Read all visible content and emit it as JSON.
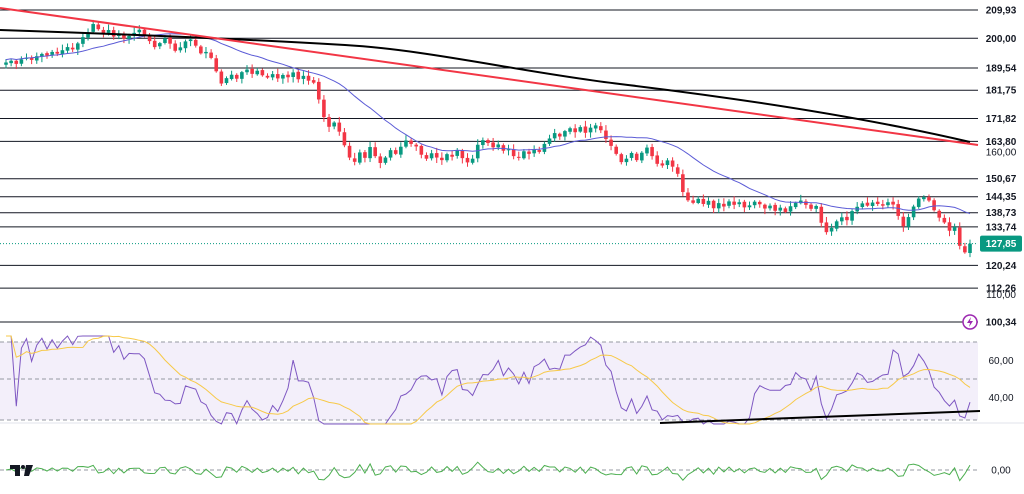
{
  "chart_data": {
    "type": "candlestick",
    "price_axis": {
      "labels": [
        "209,93",
        "200,00",
        "189,54",
        "181,75",
        "171,82",
        "163,80",
        "160,00",
        "150,67",
        "144,35",
        "138,73",
        "133,74",
        "127,85",
        "120,24",
        "112,26",
        "110,00",
        "100,34"
      ],
      "ylim": [
        96,
        213
      ]
    },
    "horizontal_levels": [
      209.93,
      200.0,
      189.54,
      181.75,
      171.82,
      163.8,
      150.67,
      144.35,
      138.73,
      133.74,
      120.24,
      112.26,
      100.34
    ],
    "last_price": {
      "value": 127.85,
      "label": "127,85",
      "color": "#089981"
    },
    "colors": {
      "up": "#089981",
      "down": "#f23645",
      "ma_short": "#5b5bd6",
      "ma_long": "#000000",
      "trendline": "#f23645",
      "rsi": "#7e57c2",
      "rsi_ma": "#f7c948",
      "momentum": "#4caf50"
    },
    "candles_close": [
      191.5,
      192.1,
      191.0,
      192.6,
      193.2,
      192.4,
      193.7,
      194.5,
      193.9,
      195.2,
      194.6,
      195.8,
      196.9,
      196.1,
      198.2,
      200.4,
      202.1,
      205.0,
      203.2,
      201.8,
      202.9,
      200.6,
      201.7,
      199.9,
      200.8,
      201.9,
      203.0,
      201.2,
      199.0,
      196.9,
      198.3,
      200.0,
      198.1,
      195.6,
      196.8,
      198.9,
      199.6,
      197.4,
      194.7,
      195.2,
      193.1,
      188.4,
      184.1,
      186.0,
      187.2,
      185.8,
      188.1,
      189.0,
      187.5,
      188.6,
      187.0,
      186.2,
      187.4,
      185.9,
      187.1,
      186.3,
      188.0,
      185.6,
      186.8,
      185.1,
      184.4,
      178.5,
      172.3,
      168.9,
      170.4,
      167.2,
      162.4,
      158.1,
      156.6,
      159.9,
      158.0,
      161.8,
      158.6,
      156.2,
      158.1,
      160.7,
      159.4,
      161.9,
      164.1,
      162.9,
      162.0,
      159.1,
      157.7,
      159.6,
      158.1,
      157.2,
      159.3,
      158.4,
      160.6,
      157.9,
      156.4,
      157.7,
      162.6,
      164.2,
      163.2,
      161.7,
      162.7,
      160.5,
      161.0,
      158.6,
      158.0,
      160.3,
      159.4,
      161.0,
      160.1,
      162.9,
      164.8,
      166.7,
      165.5,
      167.4,
      168.4,
      167.0,
      168.8,
      166.8,
      168.6,
      169.4,
      167.7,
      164.6,
      162.2,
      159.4,
      156.5,
      157.7,
      159.7,
      157.2,
      159.8,
      161.6,
      158.6,
      155.9,
      155.3,
      157.1,
      154.9,
      152.4,
      146.0,
      143.1,
      142.2,
      143.6,
      141.8,
      142.9,
      140.3,
      142.1,
      140.9,
      142.7,
      141.5,
      142.4,
      140.6,
      141.3,
      142.6,
      141.7,
      140.2,
      141.2,
      139.4,
      140.5,
      139.0,
      141.0,
      142.2,
      143.0,
      141.5,
      140.1,
      141.1,
      135.2,
      131.9,
      133.4,
      135.7,
      137.1,
      136.1,
      139.3,
      140.8,
      142.0,
      141.2,
      142.3,
      141.8,
      141.2,
      142.4,
      141.6,
      137.6,
      134.0,
      137.2,
      140.9,
      143.7,
      144.2,
      143.0,
      139.6,
      137.0,
      135.3,
      132.4,
      133.7,
      127.1,
      124.8,
      127.85
    ],
    "rsi_axis": {
      "labels": [
        "60,00",
        "40,00"
      ]
    },
    "momentum_axis": {
      "labels": [
        "0,00"
      ]
    }
  }
}
